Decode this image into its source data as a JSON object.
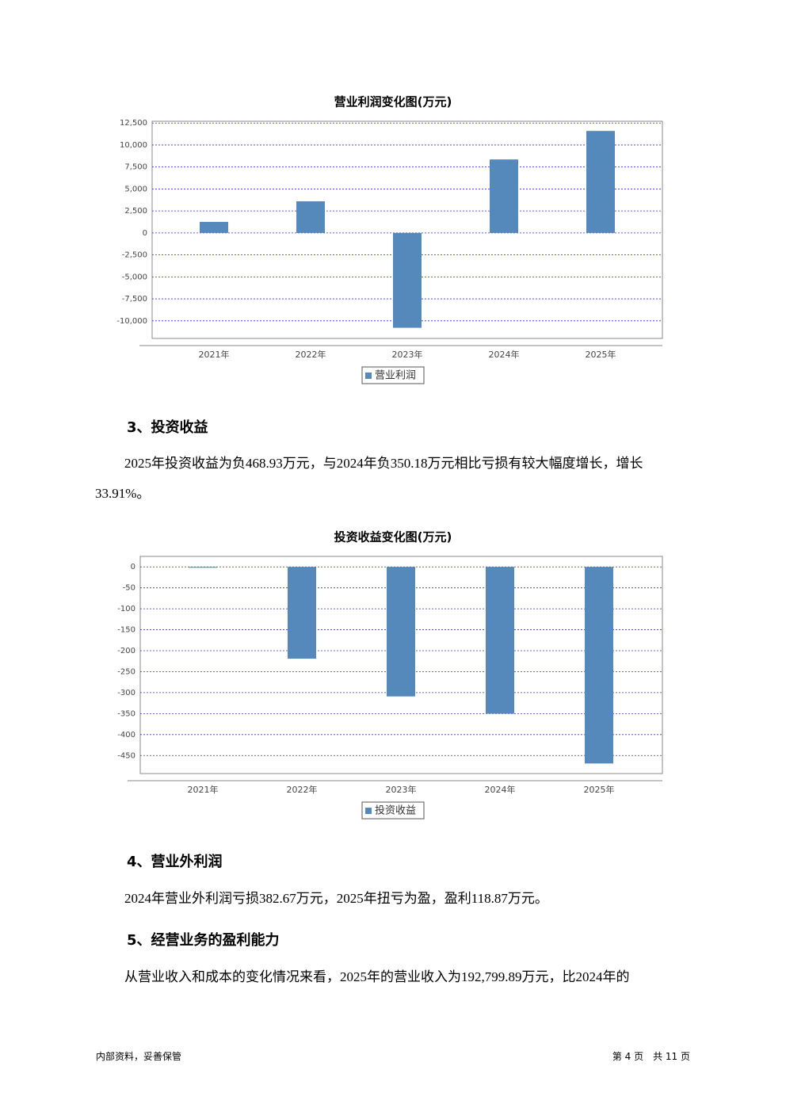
{
  "chart_data": [
    {
      "type": "bar",
      "title": "营业利润变化图(万元)",
      "categories": [
        "2021年",
        "2022年",
        "2023年",
        "2024年",
        "2025年"
      ],
      "series": [
        {
          "name": "营业利润",
          "color": "#5588bb",
          "values": [
            1260,
            3600,
            -10790,
            8360,
            11600
          ]
        }
      ],
      "ylim": [
        -12000,
        12700
      ],
      "yticks": [
        {
          "value": 12500,
          "label": "12,500"
        },
        {
          "value": 10000,
          "label": "10,000"
        },
        {
          "value": 7500,
          "label": "7,500"
        },
        {
          "value": 5000,
          "label": "5,000"
        },
        {
          "value": 2500,
          "label": "2,500"
        },
        0,
        {
          "value": -2500,
          "label": "-2,500"
        },
        {
          "value": -5000,
          "label": "-5,000"
        },
        {
          "value": -7500,
          "label": "-7,500"
        },
        {
          "value": -10000,
          "label": "-10,000"
        }
      ],
      "grid": true
    },
    {
      "type": "bar",
      "title": "投资收益变化图(万元)",
      "categories": [
        "2021年",
        "2022年",
        "2023年",
        "2024年",
        "2025年"
      ],
      "series": [
        {
          "name": "投资收益",
          "color": "#5588bb",
          "values": [
            -2,
            -219,
            -309,
            -350.18,
            -468.93
          ]
        }
      ],
      "ylim": [
        -493,
        25
      ],
      "yticks": [
        0,
        -50,
        -100,
        -150,
        -200,
        -250,
        -300,
        -350,
        -400,
        -450
      ],
      "grid": true
    }
  ],
  "sections": [
    {
      "heading": "3、投资收益",
      "paragraph": "2025年投资收益为负468.93万元，与2024年负350.18万元相比亏损有较大幅度增长，增长33.91%。"
    },
    {
      "heading": "4、营业外利润",
      "paragraph": "2024年营业外利润亏损382.67万元，2025年扭亏为盈，盈利118.87万元。"
    },
    {
      "heading": "5、经营业务的盈利能力",
      "paragraph": "从营业收入和成本的变化情况来看，2025年的营业收入为192,799.89万元，比2024年的"
    }
  ],
  "footer": {
    "left": "内部资料，妥善保管",
    "right": "第 4 页　共 11 页"
  }
}
